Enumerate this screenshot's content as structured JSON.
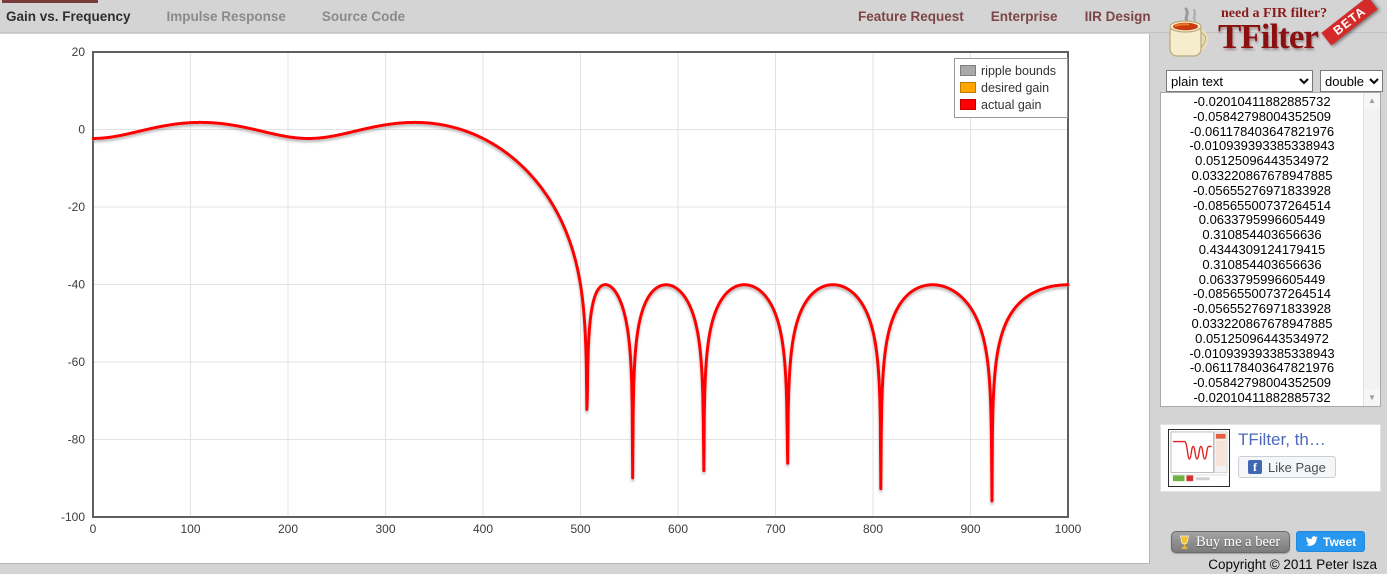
{
  "nav": {
    "tabs": [
      {
        "label": "Gain vs. Frequency",
        "active": true
      },
      {
        "label": "Impulse Response",
        "active": false
      },
      {
        "label": "Source Code",
        "active": false
      }
    ],
    "links": [
      {
        "label": "Feature Request"
      },
      {
        "label": "Enterprise"
      },
      {
        "label": "IIR Design"
      }
    ]
  },
  "chart_data": {
    "type": "line",
    "title": "",
    "xlabel": "",
    "ylabel": "",
    "xlim": [
      0,
      1000
    ],
    "ylim": [
      -100,
      20
    ],
    "x_ticks": [
      0,
      100,
      200,
      300,
      400,
      500,
      600,
      700,
      800,
      900,
      1000
    ],
    "y_ticks": [
      20,
      0,
      -20,
      -40,
      -60,
      -80,
      -100
    ],
    "grid": true,
    "legend_position": "top-right",
    "legend": [
      {
        "label": "ripple bounds",
        "color": "#a9a9a9"
      },
      {
        "label": "desired gain",
        "color": "#ffa500"
      },
      {
        "label": "actual gain",
        "color": "#ff0000"
      }
    ],
    "ripple_bounds_segments": [
      {
        "x1": 0,
        "x2": 400,
        "y": 2
      },
      {
        "x1": 0,
        "x2": 400,
        "y": -2
      },
      {
        "x1": 500,
        "x2": 1000,
        "y": -40
      }
    ],
    "desired_gain_segments": [
      {
        "x1": 0,
        "x2": 400,
        "y": 0
      }
    ],
    "actual_gain": {
      "description": "FIR frequency response 20*log10|H(f)| computed from coefficients",
      "nyquist": 1000,
      "coefficients": [
        "-0.02010411882885732",
        "-0.05842798004352509",
        "-0.061178403647821976",
        "-0.010939393385338943",
        "0.05125096443534972",
        "0.033220867678947885",
        "-0.05655276971833928",
        "-0.08565500737264514",
        "0.0633795996605449",
        "0.310854403656636",
        "0.4344309124179415",
        "0.310854403656636",
        "0.0633795996605449",
        "-0.08565500737264514",
        "-0.05655276971833928",
        "0.033220867678947885",
        "0.05125096443534972",
        "-0.010939393385338943",
        "-0.061178403647821976",
        "-0.05842798004352509",
        "-0.02010411882885732"
      ]
    }
  },
  "sidebar": {
    "logo": {
      "tagline": "need a FIR filter?",
      "brand": "TFilter",
      "badge": "BETA"
    },
    "format_select": {
      "value": "plain text"
    },
    "type_select": {
      "value": "double"
    },
    "facebook": {
      "page_title": "TFilter, th…",
      "like_label": "Like Page",
      "f_glyph": "f"
    },
    "beer_button_label": "Buy me a beer",
    "tweet_button_label": "Tweet",
    "copyright": "Copyright © 2011 Peter Isza"
  }
}
